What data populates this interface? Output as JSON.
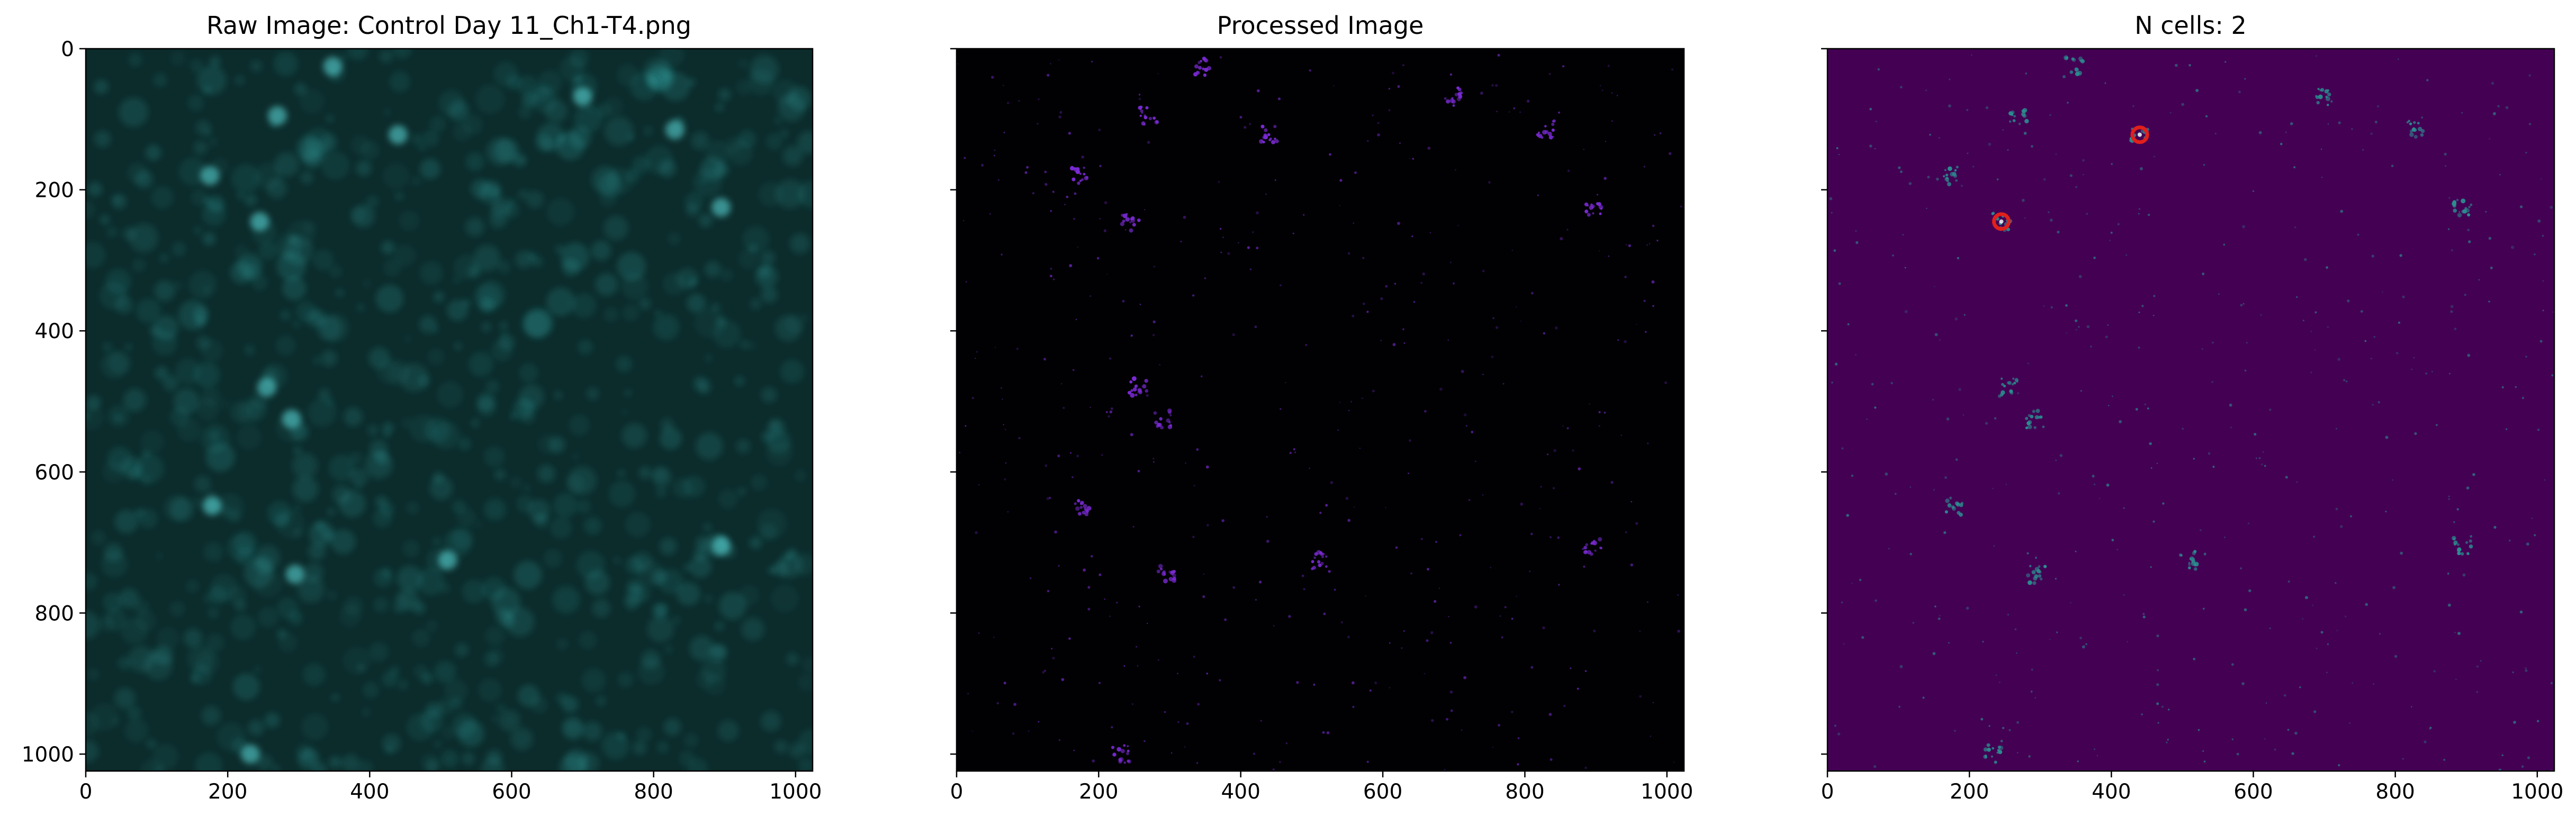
{
  "chart_data": [
    {
      "type": "heatmap",
      "title": "Raw Image: Control Day 11_Ch1-T4.png",
      "colormap": "cyan",
      "background": "#0c2b2b",
      "blob_color": "#3ecfcf",
      "xlim": [
        0,
        1024
      ],
      "ylim": [
        1024,
        0
      ],
      "xticks": [
        0,
        200,
        400,
        600,
        800,
        1000
      ],
      "yticks": [
        0,
        200,
        400,
        600,
        800,
        1000
      ],
      "show_yticklabels": true,
      "bright_spots": [
        {
          "x": 245,
          "y": 245
        },
        {
          "x": 440,
          "y": 122
        },
        {
          "x": 178,
          "y": 648
        },
        {
          "x": 232,
          "y": 1000
        },
        {
          "x": 895,
          "y": 225
        },
        {
          "x": 700,
          "y": 68
        },
        {
          "x": 348,
          "y": 25
        },
        {
          "x": 270,
          "y": 95
        },
        {
          "x": 175,
          "y": 180
        },
        {
          "x": 290,
          "y": 525
        },
        {
          "x": 255,
          "y": 480
        },
        {
          "x": 510,
          "y": 725
        },
        {
          "x": 895,
          "y": 705
        },
        {
          "x": 295,
          "y": 745
        },
        {
          "x": 830,
          "y": 115
        }
      ]
    },
    {
      "type": "heatmap",
      "title": "Processed Image",
      "colormap": "magma",
      "background": "#010103",
      "blob_color": "#7a2ad4",
      "xlim": [
        0,
        1024
      ],
      "ylim": [
        1024,
        0
      ],
      "xticks": [
        0,
        200,
        400,
        600,
        800,
        1000
      ],
      "yticks": [
        0,
        200,
        400,
        600,
        800,
        1000
      ],
      "show_yticklabels": false,
      "bright_spots": [
        {
          "x": 245,
          "y": 245
        },
        {
          "x": 440,
          "y": 122
        },
        {
          "x": 178,
          "y": 648
        },
        {
          "x": 232,
          "y": 1000
        },
        {
          "x": 895,
          "y": 225
        },
        {
          "x": 700,
          "y": 68
        },
        {
          "x": 348,
          "y": 25
        },
        {
          "x": 270,
          "y": 95
        },
        {
          "x": 175,
          "y": 180
        },
        {
          "x": 290,
          "y": 525
        },
        {
          "x": 255,
          "y": 480
        },
        {
          "x": 510,
          "y": 725
        },
        {
          "x": 895,
          "y": 705
        },
        {
          "x": 295,
          "y": 745
        },
        {
          "x": 830,
          "y": 115
        }
      ]
    },
    {
      "type": "heatmap",
      "title": "N cells: 2",
      "colormap": "viridis",
      "background": "#440154",
      "blob_color": "#2a8f8f",
      "marker_color": "#e0201b",
      "xlim": [
        0,
        1024
      ],
      "ylim": [
        1024,
        0
      ],
      "xticks": [
        0,
        200,
        400,
        600,
        800,
        1000
      ],
      "yticks": [
        0,
        200,
        400,
        600,
        800,
        1000
      ],
      "show_yticklabels": false,
      "bright_spots": [
        {
          "x": 245,
          "y": 245
        },
        {
          "x": 440,
          "y": 122
        },
        {
          "x": 178,
          "y": 648
        },
        {
          "x": 232,
          "y": 1000
        },
        {
          "x": 895,
          "y": 225
        },
        {
          "x": 700,
          "y": 68
        },
        {
          "x": 348,
          "y": 25
        },
        {
          "x": 270,
          "y": 95
        },
        {
          "x": 175,
          "y": 180
        },
        {
          "x": 290,
          "y": 525
        },
        {
          "x": 255,
          "y": 480
        },
        {
          "x": 510,
          "y": 725
        },
        {
          "x": 895,
          "y": 705
        },
        {
          "x": 295,
          "y": 745
        },
        {
          "x": 830,
          "y": 115
        }
      ],
      "detected_cells": [
        {
          "x": 440,
          "y": 122
        },
        {
          "x": 245,
          "y": 245
        }
      ]
    }
  ]
}
